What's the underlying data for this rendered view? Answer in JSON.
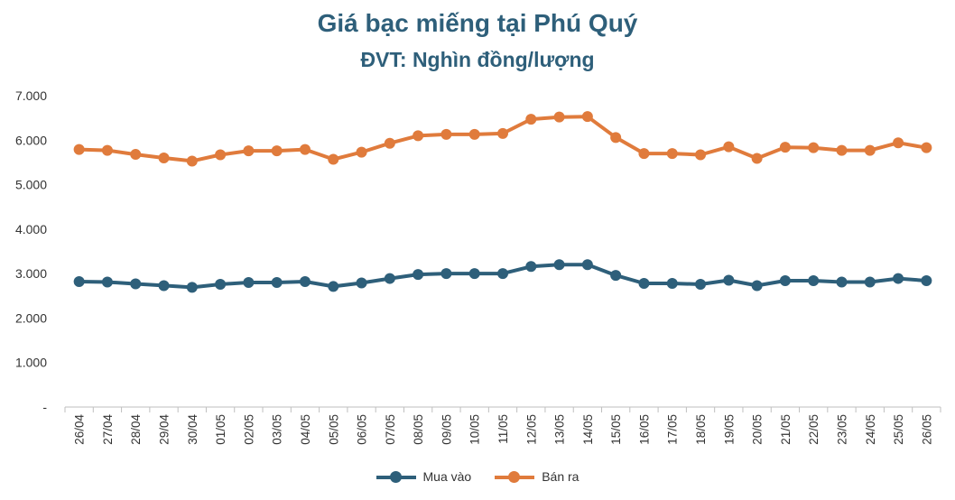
{
  "chart_data": {
    "type": "line",
    "title": "Giá bạc miếng tại Phú Quý",
    "subtitle": "ĐVT: Nghìn đồng/lượng",
    "categories": [
      "26/04",
      "27/04",
      "28/04",
      "29/04",
      "30/04",
      "01/05",
      "02/05",
      "03/05",
      "04/05",
      "05/05",
      "06/05",
      "07/05",
      "08/05",
      "09/05",
      "10/05",
      "11/05",
      "12/05",
      "13/05",
      "14/05",
      "15/05",
      "16/05",
      "17/05",
      "18/05",
      "19/05",
      "20/05",
      "21/05",
      "22/05",
      "23/05",
      "24/05",
      "25/05",
      "26/05"
    ],
    "series": [
      {
        "name": "Mua vào",
        "color": "#2e5f7a",
        "values": [
          2820,
          2810,
          2770,
          2730,
          2690,
          2760,
          2800,
          2800,
          2820,
          2710,
          2790,
          2890,
          2980,
          3000,
          3000,
          3000,
          3160,
          3200,
          3200,
          2960,
          2780,
          2780,
          2760,
          2850,
          2730,
          2840,
          2840,
          2810,
          2810,
          2890,
          2840
        ]
      },
      {
        "name": "Bán ra",
        "color": "#e07b3c",
        "values": [
          5790,
          5770,
          5680,
          5600,
          5530,
          5670,
          5760,
          5760,
          5790,
          5570,
          5730,
          5930,
          6100,
          6130,
          6130,
          6150,
          6470,
          6520,
          6530,
          6060,
          5700,
          5700,
          5670,
          5850,
          5590,
          5840,
          5830,
          5770,
          5770,
          5940,
          5830
        ]
      }
    ],
    "ylim": [
      0,
      7000
    ],
    "yticks": [
      "-",
      "1.000",
      "2.000",
      "3.000",
      "4.000",
      "5.000",
      "6.000",
      "7.000"
    ],
    "grid": false,
    "legend": "bottom"
  }
}
